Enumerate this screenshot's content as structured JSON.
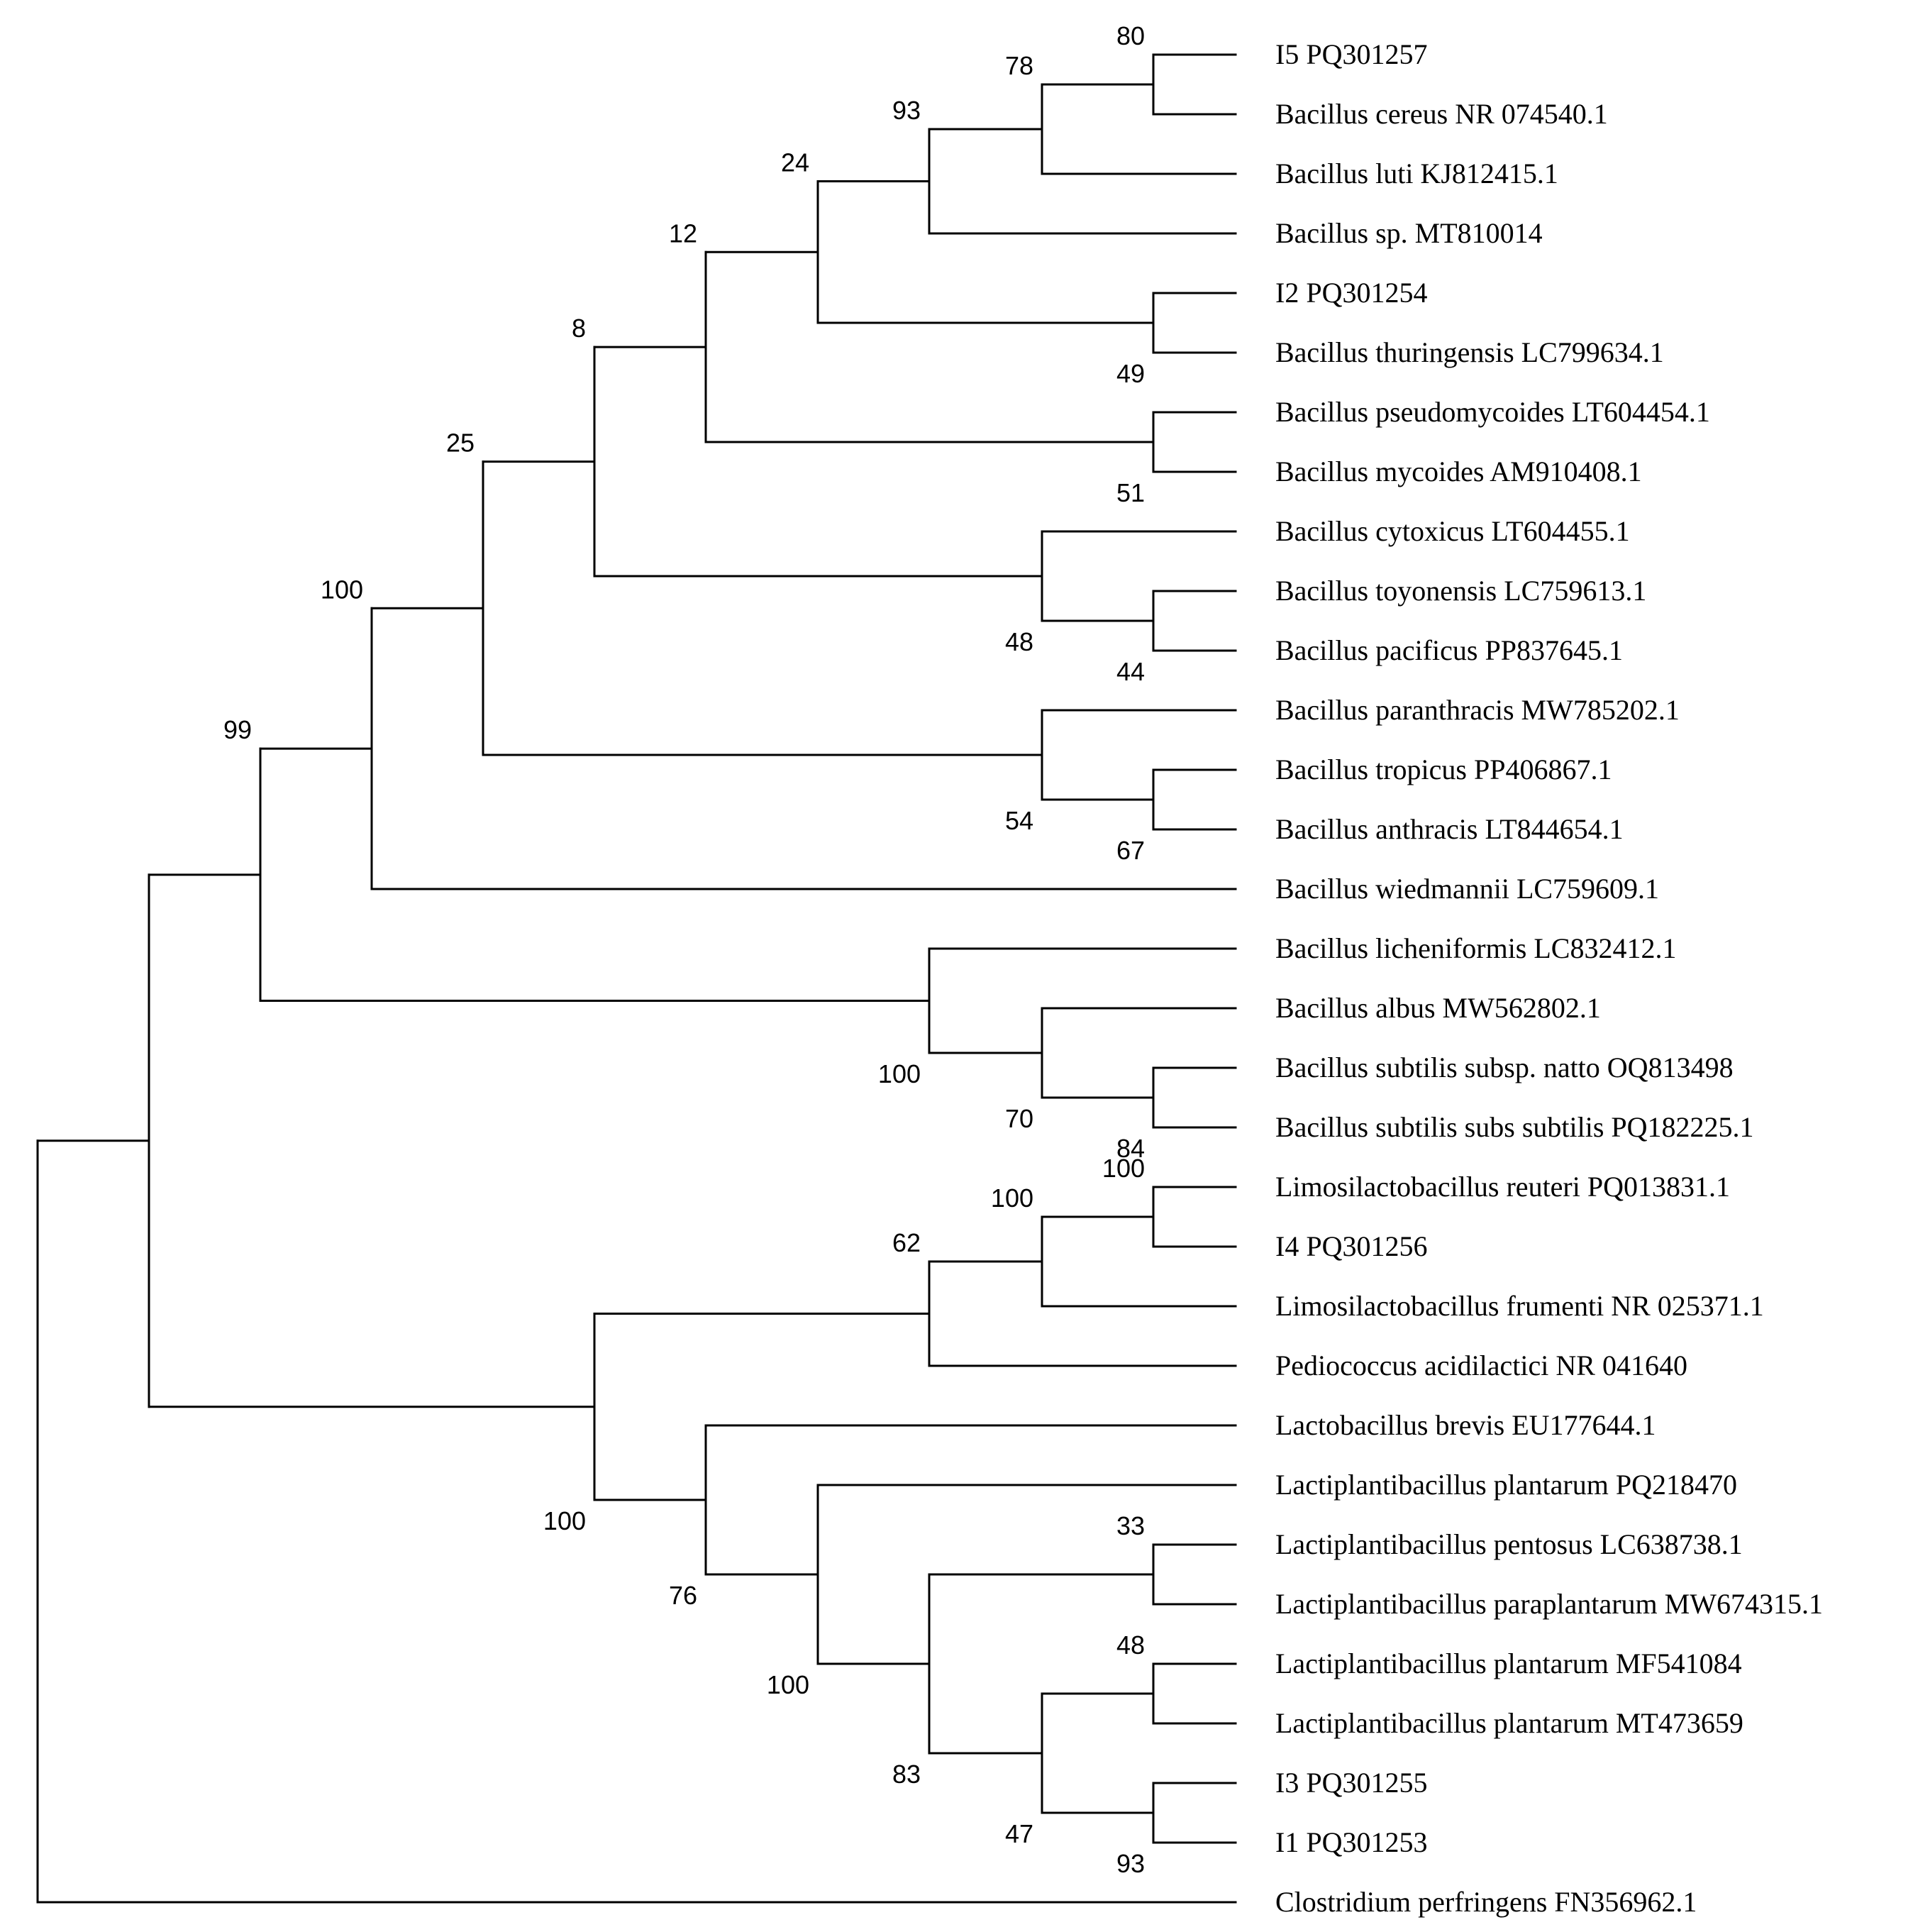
{
  "leaves": [
    "I5 PQ301257",
    "Bacillus cereus NR 074540.1",
    "Bacillus luti KJ812415.1",
    "Bacillus sp. MT810014",
    "I2 PQ301254",
    "Bacillus thuringensis LC799634.1",
    "Bacillus pseudomycoides LT604454.1",
    "Bacillus mycoides AM910408.1",
    "Bacillus cytoxicus LT604455.1",
    "Bacillus toyonensis LC759613.1",
    "Bacillus pacificus PP837645.1",
    "Bacillus paranthracis MW785202.1",
    "Bacillus tropicus PP406867.1",
    "Bacillus anthracis LT844654.1",
    "Bacillus wiedmannii LC759609.1",
    "Bacillus licheniformis LC832412.1",
    "Bacillus albus MW562802.1",
    "Bacillus subtilis subsp. natto OQ813498",
    "Bacillus subtilis subs subtilis PQ182225.1",
    "Limosilactobacillus reuteri PQ013831.1",
    "I4 PQ301256",
    "Limosilactobacillus frumenti NR 025371.1",
    "Pediococcus acidilactici NR 041640",
    "Lactobacillus brevis EU177644.1",
    "Lactiplantibacillus plantarum PQ218470",
    "Lactiplantibacillus pentosus LC638738.1",
    "Lactiplantibacillus paraplantarum MW674315.1",
    "Lactiplantibacillus plantarum MF541084",
    "Lactiplantibacillus plantarum MT473659",
    "I3 PQ301255",
    "I1 PQ301253",
    "Clostridium perfringens FN356962.1"
  ],
  "nodes": [
    {
      "id": "n1",
      "depth": 10,
      "children": [
        0,
        1
      ],
      "support": "80",
      "label_pos": "above"
    },
    {
      "id": "n2",
      "depth": 9,
      "children": [
        "n1",
        2
      ],
      "support": "78",
      "label_pos": "above"
    },
    {
      "id": "n3",
      "depth": 8,
      "children": [
        "n2",
        3
      ],
      "support": "93",
      "label_pos": "above"
    },
    {
      "id": "n4",
      "depth": 10,
      "children": [
        4,
        5
      ],
      "support": "49",
      "label_pos": "below"
    },
    {
      "id": "n5",
      "depth": 7,
      "children": [
        "n3",
        "n4"
      ],
      "support": "24",
      "label_pos": "above"
    },
    {
      "id": "n6",
      "depth": 10,
      "children": [
        6,
        7
      ],
      "support": "51",
      "label_pos": "below"
    },
    {
      "id": "n7",
      "depth": 6,
      "children": [
        "n5",
        "n6"
      ],
      "support": "12",
      "label_pos": "above"
    },
    {
      "id": "n8",
      "depth": 10,
      "children": [
        9,
        10
      ],
      "support": "44",
      "label_pos": "below"
    },
    {
      "id": "n9",
      "depth": 9,
      "children": [
        8,
        "n8"
      ],
      "support": "48",
      "label_pos": "below"
    },
    {
      "id": "n10",
      "depth": 5,
      "children": [
        "n7",
        "n9"
      ],
      "support": "8",
      "label_pos": "above"
    },
    {
      "id": "n11",
      "depth": 10,
      "children": [
        12,
        13
      ],
      "support": "67",
      "label_pos": "below"
    },
    {
      "id": "n12",
      "depth": 9,
      "children": [
        11,
        "n11"
      ],
      "support": "54",
      "label_pos": "below"
    },
    {
      "id": "n13",
      "depth": 4,
      "children": [
        "n10",
        "n12"
      ],
      "support": "25",
      "label_pos": "above"
    },
    {
      "id": "n14",
      "depth": 3,
      "children": [
        "n13",
        14
      ],
      "support": "100",
      "label_pos": "above"
    },
    {
      "id": "n15",
      "depth": 10,
      "children": [
        17,
        18
      ],
      "support": "84",
      "label_pos": "below"
    },
    {
      "id": "n16",
      "depth": 9,
      "children": [
        16,
        "n15"
      ],
      "support": "70",
      "label_pos": "below"
    },
    {
      "id": "n17",
      "depth": 8,
      "children": [
        15,
        "n16"
      ],
      "support": "100",
      "label_pos": "below"
    },
    {
      "id": "n18",
      "depth": 2,
      "children": [
        "n14",
        "n17"
      ],
      "support": "99",
      "label_pos": "above"
    },
    {
      "id": "n19",
      "depth": 10,
      "children": [
        19,
        20
      ],
      "support": "100",
      "label_pos": "above"
    },
    {
      "id": "n20",
      "depth": 9,
      "children": [
        "n19",
        21
      ],
      "support": "100",
      "label_pos": "above"
    },
    {
      "id": "n21",
      "depth": 8,
      "children": [
        "n20",
        22
      ],
      "support": "62",
      "label_pos": "above"
    },
    {
      "id": "n22",
      "depth": 10,
      "children": [
        25,
        26
      ],
      "support": "33",
      "label_pos": "above"
    },
    {
      "id": "n23",
      "depth": 10,
      "children": [
        27,
        28
      ],
      "support": "48",
      "label_pos": "above"
    },
    {
      "id": "n24",
      "depth": 10,
      "children": [
        29,
        30
      ],
      "support": "93",
      "label_pos": "below"
    },
    {
      "id": "n25",
      "depth": 9,
      "children": [
        "n23",
        "n24"
      ],
      "support": "47",
      "label_pos": "below"
    },
    {
      "id": "n26",
      "depth": 8,
      "children": [
        "n22",
        "n25"
      ],
      "support": "83",
      "label_pos": "below"
    },
    {
      "id": "n27",
      "depth": 7,
      "children": [
        24,
        "n26"
      ],
      "support": "100",
      "label_pos": "below"
    },
    {
      "id": "n28",
      "depth": 6,
      "children": [
        23,
        "n27"
      ],
      "support": "76",
      "label_pos": "below"
    },
    {
      "id": "n29",
      "depth": 5,
      "children": [
        "n21",
        "n28"
      ],
      "support": "100",
      "label_pos": "below"
    },
    {
      "id": "n30",
      "depth": 1,
      "children": [
        "n18",
        "n29"
      ],
      "support": "",
      "label_pos": "above"
    },
    {
      "id": "n31",
      "depth": 0,
      "children": [
        "n30",
        31
      ],
      "support": "",
      "label_pos": "above"
    }
  ]
}
